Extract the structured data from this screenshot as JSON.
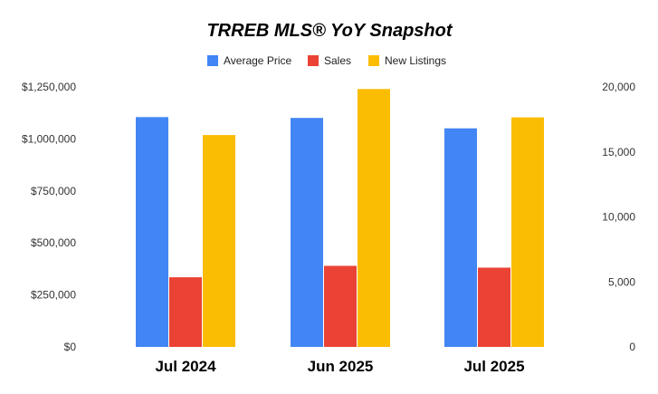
{
  "chart_data": {
    "type": "bar",
    "title": "TRREB MLS® YoY Snapshot",
    "categories": [
      "Jul 2024",
      "Jun 2025",
      "Jul 2025"
    ],
    "series": [
      {
        "name": "Average Price",
        "axis": "left",
        "color": "#4285f4",
        "values": [
          1105000,
          1101000,
          1051000
        ]
      },
      {
        "name": "Sales",
        "axis": "right",
        "color": "#ea4335",
        "values": [
          5360,
          6240,
          6100
        ]
      },
      {
        "name": "New Listings",
        "axis": "right",
        "color": "#fbbc04",
        "values": [
          16300,
          19840,
          17660
        ]
      }
    ],
    "y_left": {
      "min": 0,
      "max": 1250000,
      "ticks": [
        "$0",
        "$250,000",
        "$500,000",
        "$750,000",
        "$1,000,000",
        "$1,250,000"
      ]
    },
    "y_right": {
      "min": 0,
      "max": 20000,
      "ticks": [
        "0",
        "5,000",
        "10,000",
        "15,000",
        "20,000"
      ]
    },
    "legend_position": "top",
    "grid": false
  }
}
